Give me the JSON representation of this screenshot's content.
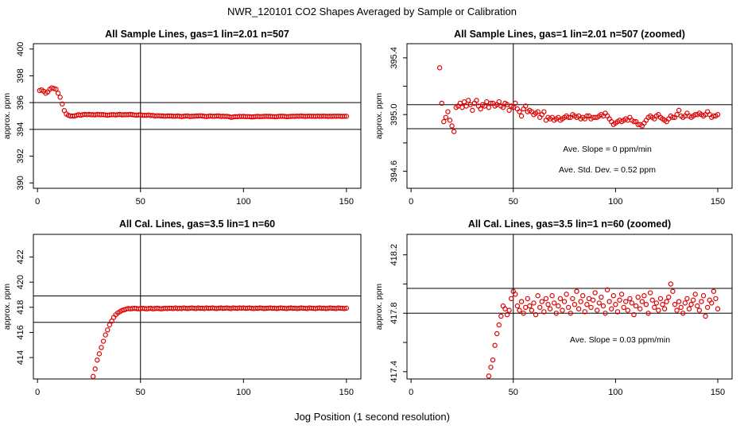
{
  "page_title": "NWR_120101  CO2 Shapes Averaged by Sample or Calibration",
  "global_xlabel": "Jog Position (1 second resolution)",
  "colors": {
    "points": "#e00000",
    "lines": "#000000",
    "background": "#ffffff"
  },
  "chart_data": [
    {
      "type": "scatter",
      "title": "All Sample Lines, gas=1 lin=2.01 n=507",
      "xlabel": "",
      "ylabel": "approx. ppm",
      "xlim": [
        -2,
        157
      ],
      "ylim": [
        389.6,
        400.4
      ],
      "xticks": [
        0,
        50,
        100,
        150
      ],
      "yticks": [
        390,
        392,
        394,
        396,
        398,
        400
      ],
      "ytick_labels": [
        "390",
        "392",
        "394",
        "396",
        "398",
        "400"
      ],
      "vline": 50,
      "hlines": [
        396.0,
        394.0
      ],
      "annotations": [],
      "x": [
        1,
        2,
        3,
        4,
        5,
        6,
        7,
        8,
        9,
        10,
        11,
        12,
        13,
        14,
        15,
        16,
        17,
        18,
        19,
        20,
        21,
        22,
        23,
        24,
        25,
        26,
        27,
        28,
        29,
        30,
        31,
        32,
        33,
        34,
        35,
        36,
        37,
        38,
        39,
        40,
        41,
        42,
        43,
        44,
        45,
        46,
        47,
        48,
        49,
        50,
        51,
        52,
        53,
        54,
        55,
        56,
        57,
        58,
        59,
        60,
        61,
        62,
        63,
        64,
        65,
        66,
        67,
        68,
        69,
        70,
        71,
        72,
        73,
        74,
        75,
        76,
        77,
        78,
        79,
        80,
        81,
        82,
        83,
        84,
        85,
        86,
        87,
        88,
        89,
        90,
        91,
        92,
        93,
        94,
        95,
        96,
        97,
        98,
        99,
        100,
        101,
        102,
        103,
        104,
        105,
        106,
        107,
        108,
        109,
        110,
        111,
        112,
        113,
        114,
        115,
        116,
        117,
        118,
        119,
        120,
        121,
        122,
        123,
        124,
        125,
        126,
        127,
        128,
        129,
        130,
        131,
        132,
        133,
        134,
        135,
        136,
        137,
        138,
        139,
        140,
        141,
        142,
        143,
        144,
        145,
        146,
        147,
        148,
        149,
        150
      ],
      "y": [
        396.9,
        396.95,
        396.85,
        396.7,
        396.8,
        397.0,
        397.1,
        397.05,
        397.0,
        396.7,
        396.4,
        395.9,
        395.4,
        395.15,
        395.05,
        395.0,
        395.0,
        395.0,
        395.05,
        395.1,
        395.05,
        395.1,
        395.12,
        395.1,
        395.12,
        395.1,
        395.1,
        395.08,
        395.12,
        395.1,
        395.1,
        395.1,
        395.08,
        395.06,
        395.08,
        395.1,
        395.1,
        395.08,
        395.1,
        395.12,
        395.08,
        395.1,
        395.1,
        395.1,
        395.12,
        395.1,
        395.08,
        395.06,
        395.08,
        395.1,
        395.05,
        395.05,
        395.05,
        395.08,
        395.03,
        395.05,
        395.0,
        395.02,
        395.02,
        395.0,
        395.0,
        394.98,
        395.0,
        395.0,
        395.0,
        394.98,
        394.98,
        395.0,
        394.98,
        394.96,
        394.98,
        395.0,
        395.0,
        394.96,
        394.98,
        394.98,
        395.0,
        395.0,
        395.02,
        395.0,
        394.98,
        394.96,
        394.98,
        395.0,
        394.98,
        394.98,
        395.0,
        395.0,
        394.97,
        394.98,
        394.97,
        394.97,
        394.95,
        394.9,
        394.93,
        394.95,
        394.95,
        394.97,
        394.96,
        394.97,
        394.95,
        394.96,
        394.95,
        394.93,
        394.94,
        394.96,
        394.97,
        394.95,
        394.96,
        394.97,
        394.98,
        394.97,
        394.97,
        394.96,
        394.95,
        394.95,
        394.97,
        394.98,
        394.98,
        394.97,
        394.95,
        394.96,
        394.97,
        394.98,
        394.97,
        394.99,
        394.98,
        395.0,
        394.98,
        394.97,
        394.98,
        394.99,
        394.98,
        394.98,
        394.97,
        394.99,
        394.98,
        394.98,
        394.99,
        394.98,
        394.97,
        394.98,
        394.97,
        394.99,
        394.98,
        394.99,
        394.98,
        394.97,
        394.98,
        394.98
      ]
    },
    {
      "type": "scatter",
      "title": "All Sample Lines, gas=1 lin=2.01 n=507 (zoomed)",
      "xlabel": "",
      "ylabel": "approx. ppm",
      "xlim": [
        -2,
        157
      ],
      "ylim": [
        394.48,
        395.5
      ],
      "xticks": [
        0,
        50,
        100,
        150
      ],
      "yticks": [
        394.6,
        394.8,
        395.0,
        395.2,
        395.4
      ],
      "ytick_labels": [
        "394.6",
        "",
        "395.0",
        "",
        "395.4"
      ],
      "vline": 50,
      "hlines": [
        395.07,
        394.9
      ],
      "annotations": [
        "Ave. Slope =  0  ppm/min",
        "Ave. Std. Dev. =  0.52  ppm"
      ],
      "x": [
        14,
        15,
        16,
        17,
        18,
        19,
        20,
        21,
        22,
        23,
        24,
        25,
        26,
        27,
        28,
        29,
        30,
        31,
        32,
        33,
        34,
        35,
        36,
        37,
        38,
        39,
        40,
        41,
        42,
        43,
        44,
        45,
        46,
        47,
        48,
        49,
        50,
        51,
        52,
        53,
        54,
        55,
        56,
        57,
        58,
        59,
        60,
        61,
        62,
        63,
        64,
        65,
        66,
        67,
        68,
        69,
        70,
        71,
        72,
        73,
        74,
        75,
        76,
        77,
        78,
        79,
        80,
        81,
        82,
        83,
        84,
        85,
        86,
        87,
        88,
        89,
        90,
        91,
        92,
        93,
        94,
        95,
        96,
        97,
        98,
        99,
        100,
        101,
        102,
        103,
        104,
        105,
        106,
        107,
        108,
        109,
        110,
        111,
        112,
        113,
        114,
        115,
        116,
        117,
        118,
        119,
        120,
        121,
        122,
        123,
        124,
        125,
        126,
        127,
        128,
        129,
        130,
        131,
        132,
        133,
        134,
        135,
        136,
        137,
        138,
        139,
        140,
        141,
        142,
        143,
        144,
        145,
        146,
        147,
        148,
        149,
        150
      ],
      "y": [
        395.33,
        395.08,
        394.95,
        394.98,
        395.02,
        394.96,
        394.92,
        394.88,
        395.05,
        395.06,
        395.08,
        395.05,
        395.09,
        395.06,
        395.1,
        395.07,
        395.03,
        395.08,
        395.1,
        395.06,
        395.04,
        395.07,
        395.06,
        395.09,
        395.05,
        395.08,
        395.08,
        395.06,
        395.07,
        395.09,
        395.06,
        395.05,
        395.08,
        395.07,
        395.03,
        395.06,
        395.05,
        395.08,
        395.04,
        395.02,
        394.99,
        395.04,
        395.06,
        395.02,
        395.03,
        395.02,
        395.0,
        395.01,
        395.02,
        394.98,
        395.0,
        395.02,
        394.96,
        394.98,
        394.97,
        394.98,
        394.96,
        394.97,
        394.98,
        394.96,
        394.97,
        394.98,
        394.99,
        394.98,
        394.98,
        395.0,
        394.99,
        394.98,
        394.99,
        394.97,
        394.98,
        394.97,
        394.99,
        394.99,
        394.97,
        394.98,
        394.98,
        394.98,
        394.99,
        395.0,
        394.99,
        395.01,
        394.99,
        394.97,
        394.95,
        394.93,
        394.94,
        394.95,
        394.96,
        394.95,
        394.96,
        394.97,
        394.96,
        394.98,
        394.96,
        394.95,
        394.95,
        394.93,
        394.93,
        394.92,
        394.94,
        394.96,
        394.98,
        394.99,
        394.98,
        394.97,
        394.99,
        395.0,
        394.98,
        394.97,
        394.96,
        394.95,
        394.97,
        394.99,
        394.98,
        394.98,
        395.0,
        395.03,
        394.99,
        394.98,
        394.99,
        395.01,
        394.99,
        394.98,
        394.99,
        395.0,
        395.0,
        395.01,
        395.0,
        394.99,
        395.0,
        395.02,
        395.0,
        394.98,
        394.99,
        394.99,
        395.0
      ]
    },
    {
      "type": "scatter",
      "title": "All Cal. Lines, gas=3.5 lin=1 n=60",
      "xlabel": "",
      "ylabel": "approx. ppm",
      "xlim": [
        -2,
        157
      ],
      "ylim": [
        412.3,
        423.8
      ],
      "xticks": [
        0,
        50,
        100,
        150
      ],
      "yticks": [
        414,
        416,
        418,
        420,
        422
      ],
      "ytick_labels": [
        "414",
        "416",
        "418",
        "420",
        "422"
      ],
      "vline": 50,
      "hlines": [
        418.9,
        416.8
      ],
      "annotations": [],
      "x": [
        27,
        28,
        29,
        30,
        31,
        32,
        33,
        34,
        35,
        36,
        37,
        38,
        39,
        40,
        41,
        42,
        43,
        44,
        45,
        46,
        47,
        48,
        49,
        50,
        51,
        52,
        53,
        54,
        55,
        56,
        57,
        58,
        59,
        60,
        61,
        62,
        63,
        64,
        65,
        66,
        67,
        68,
        69,
        70,
        71,
        72,
        73,
        74,
        75,
        76,
        77,
        78,
        79,
        80,
        81,
        82,
        83,
        84,
        85,
        86,
        87,
        88,
        89,
        90,
        91,
        92,
        93,
        94,
        95,
        96,
        97,
        98,
        99,
        100,
        101,
        102,
        103,
        104,
        105,
        106,
        107,
        108,
        109,
        110,
        111,
        112,
        113,
        114,
        115,
        116,
        117,
        118,
        119,
        120,
        121,
        122,
        123,
        124,
        125,
        126,
        127,
        128,
        129,
        130,
        131,
        132,
        133,
        134,
        135,
        136,
        137,
        138,
        139,
        140,
        141,
        142,
        143,
        144,
        145,
        146,
        147,
        148,
        149,
        150
      ],
      "y": [
        412.5,
        413.1,
        413.8,
        414.3,
        414.8,
        415.3,
        415.8,
        416.2,
        416.6,
        416.9,
        417.2,
        417.4,
        417.55,
        417.65,
        417.75,
        417.8,
        417.85,
        417.9,
        417.88,
        417.9,
        417.92,
        417.9,
        417.88,
        417.9,
        417.92,
        417.9,
        417.88,
        417.9,
        417.92,
        417.88,
        417.9,
        417.92,
        417.9,
        417.88,
        417.9,
        417.92,
        417.9,
        417.93,
        417.92,
        417.9,
        417.95,
        417.9,
        417.92,
        417.9,
        417.95,
        417.92,
        417.9,
        417.93,
        417.95,
        417.92,
        417.9,
        417.95,
        417.92,
        417.93,
        417.9,
        417.95,
        417.92,
        417.93,
        417.95,
        417.92,
        417.9,
        417.93,
        417.95,
        417.92,
        417.93,
        417.95,
        417.92,
        417.9,
        417.95,
        417.93,
        417.92,
        417.95,
        417.93,
        417.95,
        417.92,
        417.93,
        417.95,
        417.92,
        417.9,
        417.93,
        417.92,
        417.95,
        417.93,
        417.9,
        417.92,
        417.93,
        417.95,
        417.92,
        417.93,
        417.9,
        417.92,
        417.95,
        417.93,
        417.92,
        417.9,
        417.93,
        417.95,
        417.92,
        417.93,
        417.9,
        417.92,
        417.95,
        417.93,
        417.92,
        417.9,
        417.95,
        417.93,
        417.92,
        417.9,
        417.93,
        417.95,
        417.92,
        417.93,
        417.9,
        417.92,
        417.95,
        417.93,
        417.92,
        417.9,
        417.95,
        417.93,
        417.92,
        417.9,
        417.93
      ]
    },
    {
      "type": "scatter",
      "title": "All Cal. Lines, gas=3.5 lin=1 n=60 (zoomed)",
      "xlabel": "",
      "ylabel": "approx. ppm",
      "xlim": [
        -2,
        157
      ],
      "ylim": [
        417.35,
        418.34
      ],
      "xticks": [
        0,
        50,
        100,
        150
      ],
      "yticks": [
        417.4,
        417.6,
        417.8,
        418.0,
        418.2
      ],
      "ytick_labels": [
        "417.4",
        "",
        "417.8",
        "",
        "418.2"
      ],
      "vline": 50,
      "hlines": [
        417.97,
        417.8
      ],
      "annotations": [
        "Ave. Slope =  0.03  ppm/min"
      ],
      "x": [
        38,
        39,
        40,
        41,
        42,
        43,
        44,
        45,
        46,
        47,
        48,
        49,
        50,
        51,
        52,
        53,
        54,
        55,
        56,
        57,
        58,
        59,
        60,
        61,
        62,
        63,
        64,
        65,
        66,
        67,
        68,
        69,
        70,
        71,
        72,
        73,
        74,
        75,
        76,
        77,
        78,
        79,
        80,
        81,
        82,
        83,
        84,
        85,
        86,
        87,
        88,
        89,
        90,
        91,
        92,
        93,
        94,
        95,
        96,
        97,
        98,
        99,
        100,
        101,
        102,
        103,
        104,
        105,
        106,
        107,
        108,
        109,
        110,
        111,
        112,
        113,
        114,
        115,
        116,
        117,
        118,
        119,
        120,
        121,
        122,
        123,
        124,
        125,
        126,
        127,
        128,
        129,
        130,
        131,
        132,
        133,
        134,
        135,
        136,
        137,
        138,
        139,
        140,
        141,
        142,
        143,
        144,
        145,
        146,
        147,
        148,
        149,
        150
      ],
      "y": [
        417.37,
        417.43,
        417.48,
        417.58,
        417.66,
        417.72,
        417.78,
        417.85,
        417.83,
        417.79,
        417.82,
        417.9,
        417.95,
        417.93,
        417.85,
        417.82,
        417.88,
        417.8,
        417.84,
        417.9,
        417.85,
        417.82,
        417.87,
        417.79,
        417.92,
        417.84,
        417.88,
        417.81,
        417.9,
        417.86,
        417.83,
        417.92,
        417.87,
        417.8,
        417.85,
        417.9,
        417.82,
        417.88,
        417.93,
        417.84,
        417.8,
        417.9,
        417.86,
        417.95,
        417.83,
        417.88,
        417.92,
        417.81,
        417.86,
        417.9,
        417.84,
        417.89,
        417.94,
        417.82,
        417.87,
        417.91,
        417.85,
        417.8,
        417.96,
        417.88,
        417.83,
        417.92,
        417.86,
        417.81,
        417.89,
        417.93,
        417.84,
        417.88,
        417.82,
        417.9,
        417.87,
        417.79,
        417.85,
        417.91,
        417.83,
        417.88,
        417.92,
        417.86,
        417.8,
        417.94,
        417.89,
        417.84,
        417.87,
        417.82,
        417.9,
        417.86,
        417.83,
        417.88,
        417.91,
        418.0,
        417.95,
        417.86,
        417.82,
        417.88,
        417.84,
        417.8,
        417.87,
        417.9,
        417.83,
        417.86,
        417.89,
        417.93,
        417.85,
        417.82,
        417.88,
        417.92,
        417.78,
        417.84,
        417.89,
        417.87,
        417.95,
        417.9,
        417.83
      ]
    }
  ]
}
